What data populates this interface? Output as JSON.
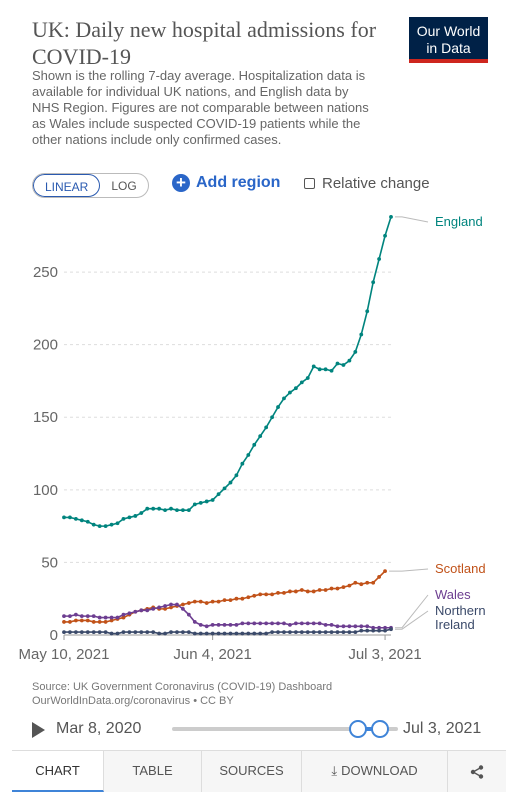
{
  "header": {
    "title": "UK: Daily new hospital admissions for COVID-19",
    "logo_line1": "Our World",
    "logo_line2": "in Data",
    "subtitle": "Shown is the rolling 7-day average. Hospitalization data is available for individual UK nations, and English data by NHS Region. Figures are not comparable between nations as Wales include suspected COVID-19 patients while the other nations include only confirmed cases."
  },
  "controls": {
    "linear_label": "LINEAR",
    "log_label": "LOG",
    "add_region_label": "Add region",
    "relative_change_label": "Relative change"
  },
  "chart_data": {
    "type": "line",
    "title": "UK: Daily new hospital admissions for COVID-19",
    "x_tick_labels": [
      "May 10, 2021",
      "Jun 4, 2021",
      "Jul 3, 2021"
    ],
    "x_tick_days": [
      0,
      25,
      54
    ],
    "ylim": [
      0,
      290
    ],
    "y_ticks": [
      0,
      50,
      100,
      150,
      200,
      250
    ],
    "grid": "horizontal dashed",
    "legend": "labels at line ends, right side",
    "series": [
      {
        "name": "England",
        "color": "#00847e",
        "values": [
          81,
          81,
          80,
          79,
          78,
          76,
          75,
          75,
          76,
          77,
          80,
          81,
          82,
          84,
          87,
          87,
          87,
          86,
          87,
          86,
          86,
          86,
          90,
          91,
          92,
          93,
          97,
          101,
          105,
          110,
          118,
          124,
          131,
          137,
          143,
          150,
          157,
          163,
          167,
          170,
          174,
          177,
          185,
          183,
          183,
          182,
          187,
          186,
          189,
          195,
          207,
          223,
          243,
          259,
          275,
          288
        ]
      },
      {
        "name": "Scotland",
        "color": "#c15219",
        "values": [
          9,
          9,
          10,
          10,
          10,
          9,
          9,
          9,
          10,
          11,
          12,
          14,
          16,
          17,
          18,
          19,
          18,
          18,
          19,
          20,
          21,
          22,
          23,
          23,
          22,
          23,
          23,
          24,
          24,
          25,
          25,
          26,
          27,
          28,
          28,
          28,
          29,
          29,
          30,
          30,
          31,
          30,
          30,
          31,
          31,
          32,
          32,
          33,
          34,
          36,
          35,
          36,
          36,
          40,
          44,
          null
        ]
      },
      {
        "name": "Wales",
        "color": "#6d3e91",
        "values": [
          13,
          13,
          14,
          13,
          13,
          13,
          12,
          12,
          12,
          12,
          14,
          15,
          16,
          17,
          17,
          18,
          19,
          20,
          21,
          21,
          18,
          14,
          9,
          7,
          6,
          7,
          7,
          7,
          7,
          7,
          8,
          8,
          8,
          8,
          8,
          8,
          8,
          8,
          7,
          8,
          8,
          8,
          8,
          8,
          7,
          7,
          6,
          6,
          6,
          6,
          6,
          6,
          5,
          5,
          5,
          5
        ]
      },
      {
        "name": "Northern Ireland",
        "color": "#3b4a6a",
        "values": [
          2,
          2,
          2,
          2,
          2,
          2,
          2,
          2,
          1,
          1,
          2,
          2,
          2,
          2,
          2,
          2,
          1,
          1,
          2,
          2,
          2,
          2,
          1,
          1,
          1,
          1,
          1,
          1,
          1,
          1,
          1,
          1,
          1,
          1,
          1,
          2,
          2,
          2,
          2,
          2,
          2,
          2,
          2,
          2,
          2,
          2,
          2,
          2,
          2,
          2,
          3,
          3,
          3,
          3,
          3,
          4
        ]
      }
    ],
    "series_labels": [
      {
        "name": "England",
        "label": "England"
      },
      {
        "name": "Scotland",
        "label": "Scotland"
      },
      {
        "name": "Wales",
        "label": "Wales"
      },
      {
        "name": "Northern Ireland",
        "label": "Northern\nIreland"
      }
    ]
  },
  "source": {
    "line1": "Source: UK Government Coronavirus (COVID-19) Dashboard",
    "line2": "OurWorldInData.org/coronavirus • CC BY"
  },
  "timeline": {
    "start_label": "Mar 8, 2020",
    "end_label": "Jul 3, 2021"
  },
  "tabs": {
    "chart": "CHART",
    "table": "TABLE",
    "sources": "SOURCES",
    "download": "DOWNLOAD"
  }
}
